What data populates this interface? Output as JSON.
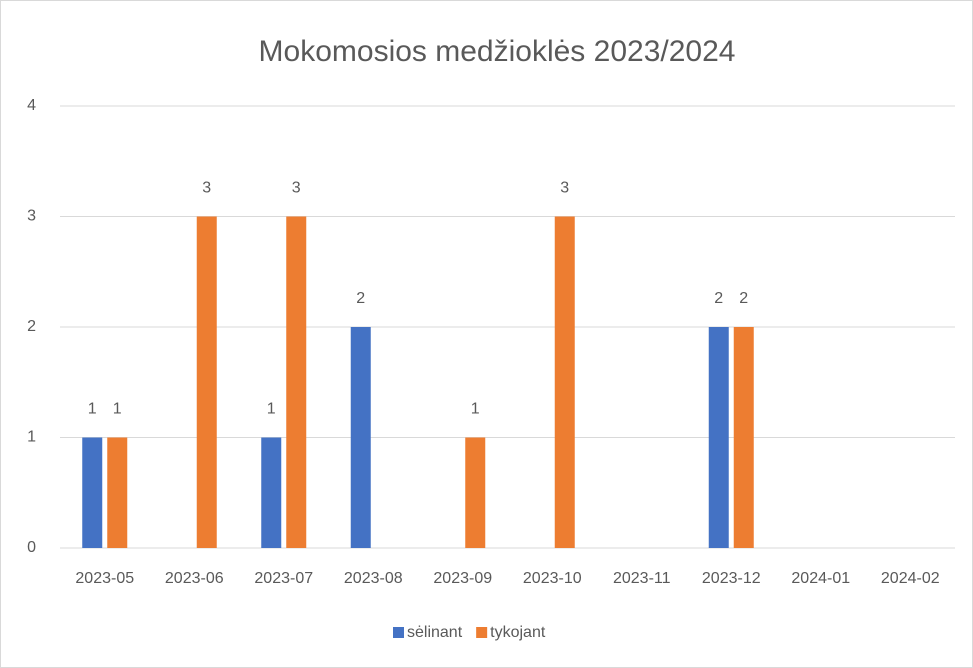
{
  "chart_data": {
    "type": "bar",
    "title": "Mokomosios medžioklės 2023/2024",
    "categories": [
      "2023-05",
      "2023-06",
      "2023-07",
      "2023-08",
      "2023-09",
      "2023-10",
      "2023-11",
      "2023-12",
      "2024-01",
      "2024-02"
    ],
    "series": [
      {
        "name": "sėlinant",
        "color": "#4472c4",
        "values": [
          1,
          null,
          1,
          2,
          null,
          null,
          null,
          2,
          null,
          null
        ]
      },
      {
        "name": "tykojant",
        "color": "#ed7d31",
        "values": [
          1,
          3,
          3,
          null,
          1,
          3,
          null,
          2,
          null,
          null
        ]
      }
    ],
    "ylim": [
      0,
      4
    ],
    "yticks": [
      0,
      1,
      2,
      3,
      4
    ],
    "grid": true,
    "legend": "bottom",
    "data_labels": true
  }
}
